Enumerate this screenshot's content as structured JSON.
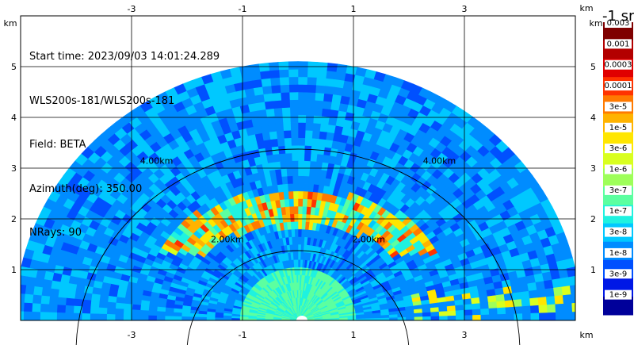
{
  "info": {
    "start_time": "Start time: 2023/09/03 14:01:24.289",
    "station": "WLS200s-181/WLS200s-181",
    "field": "Field: BETA",
    "azimuth": "Azimuth(deg): 350.00",
    "nrays": "NRays: 90"
  },
  "colorbar": {
    "title": "-1 sr",
    "labels": [
      "0.003",
      "0.001",
      "0.0003",
      "0.0001",
      "3e-5",
      "1e-5",
      "3e-6",
      "1e-6",
      "3e-7",
      "1e-7",
      "3e-8",
      "1e-8",
      "3e-9",
      "1e-9"
    ],
    "colors": [
      "#7f0000",
      "#b30000",
      "#e00000",
      "#ff3300",
      "#ff7a00",
      "#ffb300",
      "#ffe600",
      "#d9ff1f",
      "#9eff59",
      "#5cffa0",
      "#1ff2e0",
      "#00c8ff",
      "#008cff",
      "#0050ff",
      "#0018e6",
      "#00009a"
    ]
  },
  "chart_data": {
    "type": "heatmap",
    "title": "",
    "xlabel": "km",
    "ylabel": "km",
    "x_unit": "km",
    "y_unit": "km",
    "xlim": [
      -5,
      5
    ],
    "ylim": [
      0,
      6
    ],
    "x_ticks": [
      -3,
      -1,
      1,
      3
    ],
    "y_ticks": [
      1,
      2,
      3,
      4,
      5
    ],
    "range_rings": [
      {
        "range_km": 2,
        "label": "2.00km"
      },
      {
        "range_km": 4,
        "label": "4.00km"
      }
    ],
    "grid": true,
    "color_scale": "log",
    "colorbar_range": [
      1e-09,
      0.003
    ],
    "features": [
      {
        "name": "enhanced layer",
        "range_km": [
          2.0,
          2.7
        ],
        "max_value": 0.0001
      },
      {
        "name": "near-field",
        "range_km": [
          0,
          1.0
        ],
        "typical_value": 3e-07
      },
      {
        "name": "background",
        "range_km": [
          1.0,
          5.1
        ],
        "typical_value": 3e-08
      }
    ]
  }
}
